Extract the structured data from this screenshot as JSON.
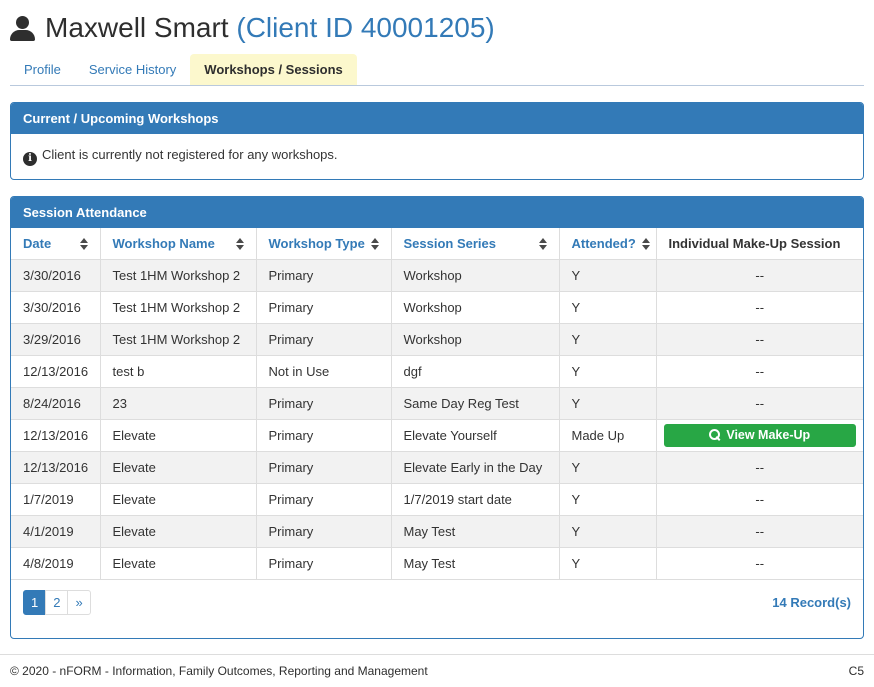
{
  "header": {
    "title": "Maxwell Smart",
    "client_id_label": "(Client ID 40001205)"
  },
  "tabs": [
    {
      "label": "Profile",
      "active": false
    },
    {
      "label": "Service History",
      "active": false
    },
    {
      "label": "Workshops / Sessions",
      "active": true
    }
  ],
  "upcoming_panel": {
    "title": "Current / Upcoming Workshops",
    "message": "Client is currently not registered for any workshops."
  },
  "attendance_panel": {
    "title": "Session Attendance",
    "columns": [
      {
        "label": "Date",
        "sortable": true
      },
      {
        "label": "Workshop Name",
        "sortable": true
      },
      {
        "label": "Workshop Type",
        "sortable": true
      },
      {
        "label": "Session Series",
        "sortable": true
      },
      {
        "label": "Attended?",
        "sortable": true
      },
      {
        "label": "Individual Make-Up Session",
        "sortable": false
      }
    ],
    "rows": [
      {
        "date": "3/30/2016",
        "workshop_name": "Test 1HM Workshop 2",
        "workshop_type": "Primary",
        "session_series": "Workshop",
        "attended": "Y",
        "make_up": "--",
        "make_up_is_button": false
      },
      {
        "date": "3/30/2016",
        "workshop_name": "Test 1HM Workshop 2",
        "workshop_type": "Primary",
        "session_series": "Workshop",
        "attended": "Y",
        "make_up": "--",
        "make_up_is_button": false
      },
      {
        "date": "3/29/2016",
        "workshop_name": "Test 1HM Workshop 2",
        "workshop_type": "Primary",
        "session_series": "Workshop",
        "attended": "Y",
        "make_up": "--",
        "make_up_is_button": false
      },
      {
        "date": "12/13/2016",
        "workshop_name": "test b",
        "workshop_type": "Not in Use",
        "session_series": "dgf",
        "attended": "Y",
        "make_up": "--",
        "make_up_is_button": false
      },
      {
        "date": "8/24/2016",
        "workshop_name": "23",
        "workshop_type": "Primary",
        "session_series": "Same Day Reg Test",
        "attended": "Y",
        "make_up": "--",
        "make_up_is_button": false
      },
      {
        "date": "12/13/2016",
        "workshop_name": "Elevate",
        "workshop_type": "Primary",
        "session_series": "Elevate Yourself",
        "attended": "Made Up",
        "make_up": "View Make-Up",
        "make_up_is_button": true
      },
      {
        "date": "12/13/2016",
        "workshop_name": "Elevate",
        "workshop_type": "Primary",
        "session_series": "Elevate Early in the Day",
        "attended": "Y",
        "make_up": "--",
        "make_up_is_button": false
      },
      {
        "date": "1/7/2019",
        "workshop_name": "Elevate",
        "workshop_type": "Primary",
        "session_series": "1/7/2019 start date",
        "attended": "Y",
        "make_up": "--",
        "make_up_is_button": false
      },
      {
        "date": "4/1/2019",
        "workshop_name": "Elevate",
        "workshop_type": "Primary",
        "session_series": "May Test",
        "attended": "Y",
        "make_up": "--",
        "make_up_is_button": false
      },
      {
        "date": "4/8/2019",
        "workshop_name": "Elevate",
        "workshop_type": "Primary",
        "session_series": "May Test",
        "attended": "Y",
        "make_up": "--",
        "make_up_is_button": false
      }
    ],
    "pagination": {
      "pages": [
        {
          "label": "1",
          "active": true
        },
        {
          "label": "2",
          "active": false
        },
        {
          "label": "»",
          "active": false
        }
      ],
      "record_count": "14 Record(s)"
    }
  },
  "footer": {
    "copyright": "© 2020 - nFORM - Information, Family Outcomes, Reporting and Management",
    "page_code": "C5"
  },
  "icons": {
    "user": "user-silhouette-icon",
    "info": "info-circle-icon",
    "sort": "sort-arrows-icon",
    "search": "magnifier-icon"
  },
  "colors": {
    "primary_blue": "#337ab7",
    "active_tab_yellow": "#FCF8CD",
    "button_green": "#28a745",
    "stripe_gray": "#f2f2f2"
  }
}
